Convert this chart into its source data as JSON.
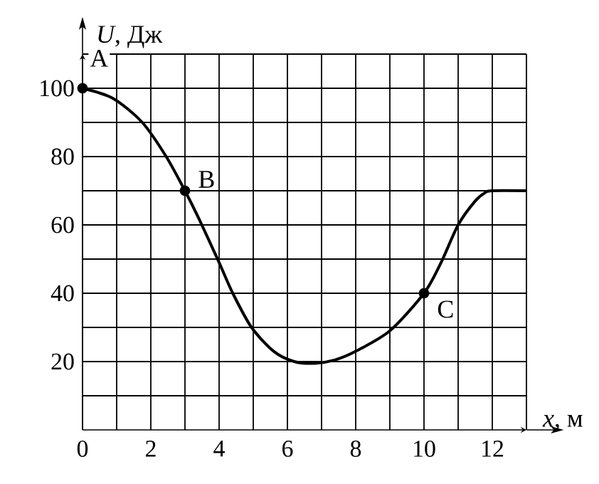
{
  "chart_data": {
    "type": "line",
    "xlabel": "*x*, м",
    "ylabel": "*U*, Дж",
    "xlim": [
      0,
      13
    ],
    "ylim": [
      0,
      110
    ],
    "xticks": [
      0,
      {
        "value": 1,
        "label": null
      },
      2,
      {
        "value": 3,
        "label": null
      },
      4,
      {
        "value": 5,
        "label": null
      },
      6,
      {
        "value": 7,
        "label": null
      },
      8,
      {
        "value": 9,
        "label": null
      },
      10,
      {
        "value": 11,
        "label": null
      },
      12,
      {
        "value": 13,
        "label": null
      }
    ],
    "yticks": [
      {
        "value": 10,
        "label": null
      },
      20,
      {
        "value": 30,
        "label": null
      },
      40,
      {
        "value": 50,
        "label": null
      },
      60,
      {
        "value": 70,
        "label": null
      },
      80,
      {
        "value": 90,
        "label": null
      },
      100,
      {
        "value": 110,
        "label": null
      }
    ],
    "grid": true,
    "series": [
      {
        "color": "#000000",
        "marker": "none",
        "x": [
          0,
          0.9,
          1.75,
          2.45,
          3,
          3.4,
          4,
          4.4,
          4.95,
          5.6,
          6.2,
          6.8,
          7.4,
          8,
          9,
          10,
          10.5,
          11,
          11.5,
          11.8,
          12,
          13
        ],
        "values": [
          100,
          97,
          90,
          80,
          70,
          62,
          49,
          40,
          30,
          23,
          20,
          19.5,
          20.5,
          23,
          29,
          40,
          49,
          60,
          67,
          69.5,
          70,
          70
        ]
      },
      {
        "type": "scatter",
        "color": "#000000",
        "marker": "circle",
        "x": [
          0,
          3,
          10
        ],
        "values": [
          100,
          70,
          40
        ]
      }
    ],
    "annotations": [
      {
        "text": "A",
        "x": 0,
        "y": 100
      },
      {
        "text": "B",
        "x": 3,
        "y": 70
      },
      {
        "text": "C",
        "x": 10,
        "y": 40
      }
    ]
  }
}
